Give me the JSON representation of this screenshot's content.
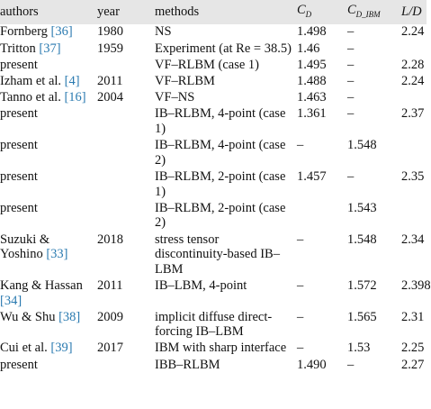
{
  "table": {
    "header": [
      "authors",
      "year",
      "methods",
      {
        "text": "C",
        "sub": "D"
      },
      {
        "text": "C",
        "sub": "D_IBM"
      },
      "L/D"
    ],
    "rows": [
      {
        "author": "Fornberg",
        "ref": "[36]",
        "year": "1980",
        "method": "NS",
        "cd": "1.498",
        "cdibm": "–",
        "ld": "2.24"
      },
      {
        "author": "Tritton",
        "ref": "[37]",
        "year": "1959",
        "method": "Experiment (at Re = 38.5)",
        "cd": "1.46",
        "cdibm": "–"
      },
      {
        "author": "present",
        "method": "VF–RLBM (case 1)",
        "cd": "1.495",
        "cdibm": "–",
        "ld": "2.28"
      },
      {
        "author": "Izham et al.",
        "ref": "[4]",
        "year": "2011",
        "method": "VF–RLBM",
        "cd": "1.488",
        "cdibm": "–",
        "ld": "2.24"
      },
      {
        "author": "Tanno et al.",
        "ref": "[16]",
        "year": "2004",
        "method": "VF–NS",
        "cd": "1.463",
        "cdibm": "–"
      },
      {
        "author": "present",
        "method": "IB–RLBM, 4-point (case 1)",
        "cd": "1.361",
        "cdibm": "–",
        "ld": "2.37"
      },
      {
        "author": "present",
        "method": "IB–RLBM, 4-point (case 2)",
        "cd": "–",
        "cdibm": "1.548"
      },
      {
        "author": "present",
        "method": "IB–RLBM, 2-point (case 1)",
        "cd": "1.457",
        "cdibm": "–",
        "ld": "2.35"
      },
      {
        "author": "present",
        "method": "IB–RLBM, 2-point (case 2)",
        "cdibm": "1.543"
      },
      {
        "author": "Suzuki & Yoshino",
        "ref": "[33]",
        "year": "2018",
        "method": "stress tensor discontinuity-based IB–LBM",
        "cd": "–",
        "cdibm": "1.548",
        "ld": "2.34"
      },
      {
        "author": "Kang & Hassan",
        "ref": "[34]",
        "year": "2011",
        "method": "IB–LBM, 4-point",
        "cd": "–",
        "cdibm": "1.572",
        "ld": "2.398"
      },
      {
        "author": "Wu & Shu",
        "ref": "[38]",
        "year": "2009",
        "method": "implicit diffuse direct-forcing IB–LBM",
        "cd": "–",
        "cdibm": "1.565",
        "ld": "2.31"
      },
      {
        "author": "Cui et al.",
        "ref": "[39]",
        "year": "2017",
        "method": "IBM with sharp interface",
        "cd": "–",
        "cdibm": "1.53",
        "ld": "2.25"
      },
      {
        "author": "present",
        "method": "IBB–RLBM",
        "cd": "1.490",
        "cdibm": "–",
        "ld": "2.27"
      }
    ]
  }
}
